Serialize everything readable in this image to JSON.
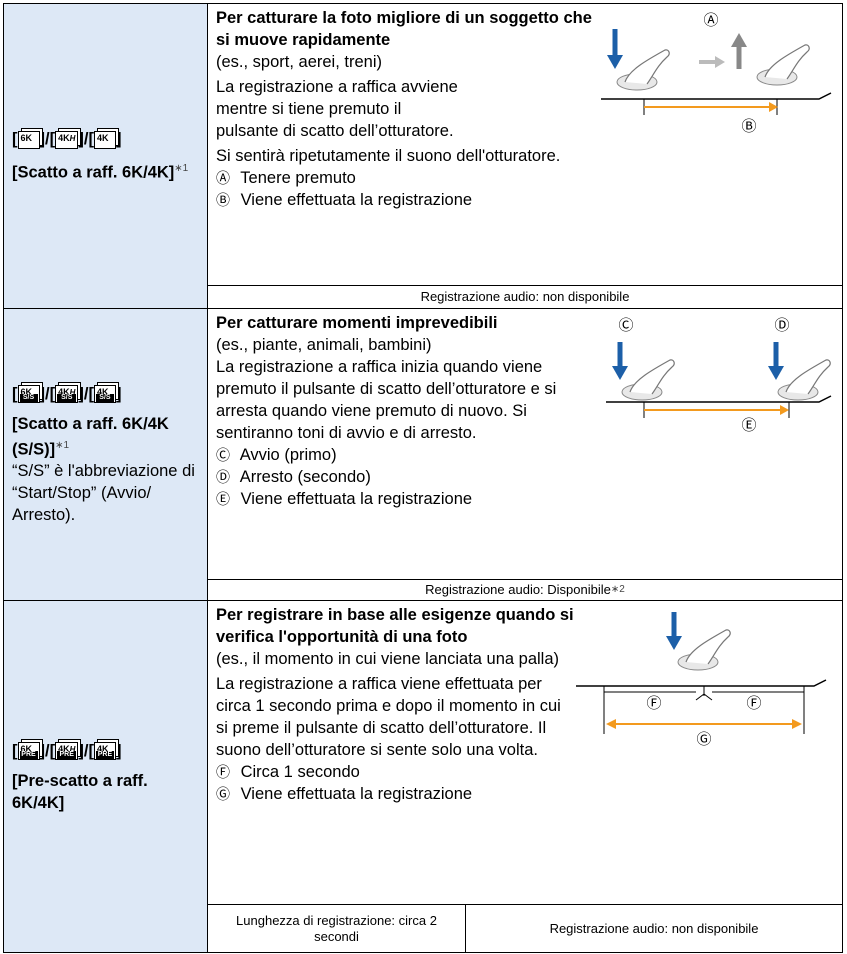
{
  "rows": [
    {
      "bracket_open": "[",
      "separator": "]/[",
      "bracket_close": "]",
      "icons": [
        {
          "label": "6K"
        },
        {
          "label": "4K",
          "mark": "H"
        },
        {
          "label": "4K"
        }
      ],
      "title": "[Scatto a raff. 6K/4K]",
      "footnote": "∗1",
      "heading": "Per catturare la foto migliore di un soggetto che si muove rapidamente",
      "examples": "(es., sport, aerei, treni)",
      "paragraphs": [
        "La registrazione a raffica avviene mentre si tiene premuto il pulsante di scatto dell’otturatore.",
        "Si sentirà ripetutamente il suono dell'otturatore."
      ],
      "legend": [
        {
          "mark": "Ⓐ",
          "text": "Tenere premuto"
        },
        {
          "mark": "Ⓑ",
          "text": "Viene effettuata la registrazione"
        }
      ],
      "audio": "Registrazione audio: non disponibile"
    },
    {
      "bracket_open": "[",
      "separator": "]/[",
      "bracket_close": "]",
      "icons": [
        {
          "label": "6K"
        },
        {
          "label": "4K",
          "mark": "H"
        },
        {
          "label": "4K"
        }
      ],
      "badge": "S/S",
      "title": "[Scatto a raff. 6K/4K (S/S)]",
      "footnote": "∗1",
      "note": "“S/S” è l'abbreviazione di “Start/Stop” (Avvio/ Arresto).",
      "heading": "Per catturare momenti imprevedibili",
      "examples": "(es., piante, animali, bambini)",
      "paragraphs": [
        "La registrazione a raffica inizia quando viene premuto il pulsante di scatto dell’otturatore e si arresta quando viene premuto di nuovo. Si sentiranno toni di avvio e di arresto."
      ],
      "legend": [
        {
          "mark": "Ⓒ",
          "text": "Avvio (primo)"
        },
        {
          "mark": "Ⓓ",
          "text": "Arresto (secondo)"
        },
        {
          "mark": "Ⓔ",
          "text": "Viene effettuata la registrazione"
        }
      ],
      "audio": "Registrazione audio: Disponibile",
      "audio_footnote": "∗2"
    },
    {
      "bracket_open": "[",
      "separator": "]/[",
      "bracket_close": "]",
      "icons": [
        {
          "label": "6K"
        },
        {
          "label": "4K",
          "mark": "H"
        },
        {
          "label": "4K"
        }
      ],
      "badge": "PRE",
      "title": "[Pre-scatto a raff. 6K/4K]",
      "heading": "Per registrare in base alle esigenze quando si verifica l'opportunità di una foto",
      "examples": "(es., il momento in cui viene lanciata una palla)",
      "paragraphs": [
        "La registrazione a raffica viene effettuata per circa 1 secondo prima e dopo il momento in cui si preme il pulsante di scatto dell’otturatore. Il suono dell’otturatore si sente solo una volta."
      ],
      "legend": [
        {
          "mark": "Ⓕ",
          "text": "Circa 1 secondo"
        },
        {
          "mark": "Ⓖ",
          "text": "Viene effettuata la registrazione"
        }
      ],
      "length": "Lunghezza di registrazione: circa 2 secondi",
      "audio": "Registrazione audio: non disponibile"
    }
  ]
}
